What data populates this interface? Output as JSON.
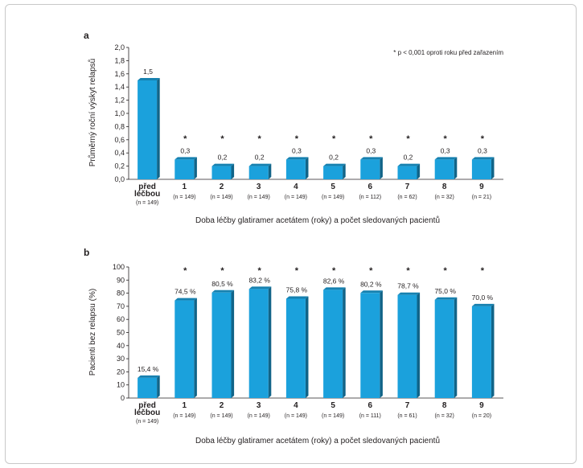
{
  "chart_data": [
    {
      "type": "bar",
      "panel_label": "a",
      "ylabel": "Průměrný roční výskyt relapsů",
      "xlabel": "Doba léčby glatiramer acetátem (roky) a počet sledovaných pacientů",
      "note": "* p < 0,001 oproti roku před zařazením",
      "ylim": [
        0,
        2.0
      ],
      "yticks": [
        "0,0",
        "0,2",
        "0,4",
        "0,6",
        "0,8",
        "1,0",
        "1,2",
        "1,4",
        "1,6",
        "1,8",
        "2,0"
      ],
      "categories": [
        "před léčbou",
        "1",
        "2",
        "3",
        "4",
        "5",
        "6",
        "7",
        "8",
        "9"
      ],
      "category_lines": [
        [
          "před",
          "léčbou"
        ],
        [
          "1"
        ],
        [
          "2"
        ],
        [
          "3"
        ],
        [
          "4"
        ],
        [
          "5"
        ],
        [
          "6"
        ],
        [
          "7"
        ],
        [
          "8"
        ],
        [
          "9"
        ]
      ],
      "n_labels": [
        "(n = 149)",
        "(n = 149)",
        "(n = 149)",
        "(n = 149)",
        "(n = 149)",
        "(n = 149)",
        "(n = 112)",
        "(n = 62)",
        "(n = 32)",
        "(n = 21)"
      ],
      "values": [
        1.5,
        0.3,
        0.2,
        0.2,
        0.3,
        0.2,
        0.3,
        0.2,
        0.3,
        0.3
      ],
      "data_labels": [
        "1,5",
        "0,3",
        "0,2",
        "0,2",
        "0,3",
        "0,2",
        "0,3",
        "0,2",
        "0,3",
        "0,3"
      ],
      "significance": [
        false,
        true,
        true,
        true,
        true,
        true,
        true,
        true,
        true,
        true
      ],
      "significance_marker": "*",
      "bar_color": "#1ba1dc",
      "grid": false
    },
    {
      "type": "bar",
      "panel_label": "b",
      "ylabel": "Pacienti bez relapsu (%)",
      "xlabel": "Doba léčby glatiramer acetátem (roky) a počet sledovaných pacientů",
      "ylim": [
        0,
        100
      ],
      "yticks": [
        "0",
        "10",
        "20",
        "30",
        "40",
        "50",
        "60",
        "70",
        "80",
        "90",
        "100"
      ],
      "categories": [
        "před léčbou",
        "1",
        "2",
        "3",
        "4",
        "5",
        "6",
        "7",
        "8",
        "9"
      ],
      "category_lines": [
        [
          "před",
          "léčbou"
        ],
        [
          "1"
        ],
        [
          "2"
        ],
        [
          "3"
        ],
        [
          "4"
        ],
        [
          "5"
        ],
        [
          "6"
        ],
        [
          "7"
        ],
        [
          "8"
        ],
        [
          "9"
        ]
      ],
      "n_labels": [
        "(n = 149)",
        "(n = 149)",
        "(n = 149)",
        "(n = 149)",
        "(n = 149)",
        "(n = 149)",
        "(n = 111)",
        "(n = 61)",
        "(n = 32)",
        "(n = 20)"
      ],
      "values": [
        15.4,
        74.5,
        80.5,
        83.2,
        75.8,
        82.6,
        80.2,
        78.7,
        75.0,
        70.0
      ],
      "data_labels": [
        "15,4 %",
        "74,5 %",
        "80,5 %",
        "83,2 %",
        "75,8 %",
        "82,6 %",
        "80,2 %",
        "78,7 %",
        "75,0 %",
        "70,0 %"
      ],
      "significance": [
        false,
        true,
        true,
        true,
        true,
        true,
        true,
        true,
        true,
        true
      ],
      "significance_marker": "*",
      "bar_color": "#1ba1dc",
      "grid": false
    }
  ]
}
